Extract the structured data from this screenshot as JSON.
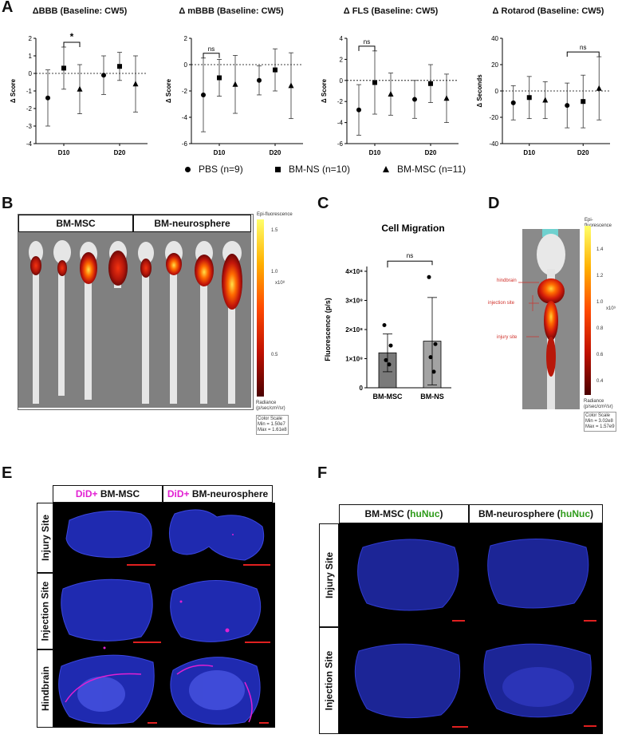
{
  "panels": {
    "A": "A",
    "B": "B",
    "C": "C",
    "D": "D",
    "E": "E",
    "F": "F"
  },
  "panelA": {
    "charts": [
      {
        "title": "ΔBBB (Baseline: CW5)",
        "ylabel": "Δ Score",
        "ylim": [
          -4,
          2
        ],
        "yticks": [
          "-4",
          "-3",
          "-2",
          "-1",
          "0",
          "1",
          "2"
        ],
        "xticks": [
          "D10",
          "D20"
        ],
        "sig": [
          {
            "label": "*",
            "group": "D10",
            "from": "BM-NS",
            "to": "BM-MSC"
          }
        ],
        "series": [
          {
            "name": "PBS",
            "values": [
              -1.4,
              -0.1
            ],
            "err": [
              1.6,
              1.1
            ]
          },
          {
            "name": "BM-NS",
            "values": [
              0.3,
              0.4
            ],
            "err": [
              1.2,
              0.8
            ]
          },
          {
            "name": "BM-MSC",
            "values": [
              -0.9,
              -0.6
            ],
            "err": [
              1.4,
              1.6
            ]
          }
        ]
      },
      {
        "title": "Δ mBBB (Baseline: CW5)",
        "ylabel": "Δ Score",
        "ylim": [
          -6,
          2
        ],
        "yticks": [
          "-6",
          "-4",
          "-2",
          "0",
          "2"
        ],
        "xticks": [
          "D10",
          "D20"
        ],
        "sig": [
          {
            "label": "ns",
            "group": "D10",
            "from": "PBS",
            "to": "BM-NS"
          }
        ],
        "series": [
          {
            "name": "PBS",
            "values": [
              -2.3,
              -1.2
            ],
            "err": [
              2.8,
              1.1
            ]
          },
          {
            "name": "BM-NS",
            "values": [
              -1.0,
              -0.4
            ],
            "err": [
              1.4,
              1.6
            ]
          },
          {
            "name": "BM-MSC",
            "values": [
              -1.5,
              -1.6
            ],
            "err": [
              2.2,
              2.5
            ]
          }
        ]
      },
      {
        "title": "Δ FLS (Baseline: CW5)",
        "ylabel": "Δ Score",
        "ylim": [
          -6,
          4
        ],
        "yticks": [
          "-6",
          "-4",
          "-2",
          "0",
          "2",
          "4"
        ],
        "xticks": [
          "D10",
          "D20"
        ],
        "sig": [
          {
            "label": "ns",
            "group": "D10",
            "from": "PBS",
            "to": "BM-NS"
          }
        ],
        "series": [
          {
            "name": "PBS",
            "values": [
              -2.8,
              -1.8
            ],
            "err": [
              2.4,
              1.8
            ]
          },
          {
            "name": "BM-NS",
            "values": [
              -0.2,
              -0.3
            ],
            "err": [
              3.0,
              1.8
            ]
          },
          {
            "name": "BM-MSC",
            "values": [
              -1.3,
              -1.7
            ],
            "err": [
              2.0,
              2.3
            ]
          }
        ]
      },
      {
        "title": "Δ Rotarod (Baseline: CW5)",
        "ylabel": "Δ Seconds",
        "ylim": [
          -40,
          40
        ],
        "yticks": [
          "-40",
          "-20",
          "0",
          "20",
          "40"
        ],
        "xticks": [
          "D10",
          "D20"
        ],
        "sig": [
          {
            "label": "ns",
            "group": "D20",
            "from": "PBS",
            "to": "BM-MSC"
          }
        ],
        "series": [
          {
            "name": "PBS",
            "values": [
              -9,
              -11
            ],
            "err": [
              13,
              17
            ]
          },
          {
            "name": "BM-NS",
            "values": [
              -5,
              -8
            ],
            "err": [
              16,
              20
            ]
          },
          {
            "name": "BM-MSC",
            "values": [
              -7,
              2
            ],
            "err": [
              14,
              24
            ]
          }
        ]
      }
    ],
    "legend": [
      {
        "marker": "circle",
        "label": "PBS (n=9)"
      },
      {
        "marker": "square",
        "label": "BM-NS (n=10)"
      },
      {
        "marker": "triangle",
        "label": "BM-MSC (n=11)"
      }
    ]
  },
  "panelB": {
    "headers": [
      "BM-MSC",
      "BM-neurosphere"
    ],
    "colorbar_title": "Epi-fluorescence",
    "ticks": [
      "1.5",
      "1.0",
      "0.5"
    ],
    "unit": "x10⁸",
    "radiance": "Radiance\n(p/sec/cm²/sr)",
    "colorscale": "Color Scale\nMin = 1.50e7\nMax = 1.61e8"
  },
  "panelC": {
    "chart_data": {
      "type": "bar",
      "title": "Cell Migration",
      "ylabel": "Fluorescence (p/s)",
      "categories": [
        "BM-MSC",
        "BM-NS"
      ],
      "values": [
        1.2,
        1.6
      ],
      "err": [
        0.65,
        1.5
      ],
      "points": [
        [
          2.15,
          1.45,
          0.95,
          0.8
        ],
        [
          3.8,
          1.5,
          1.05,
          0.55
        ]
      ],
      "yticks": [
        "0",
        "1×10⁸",
        "2×10⁸",
        "3×10⁸",
        "4×10⁸"
      ],
      "ylim": [
        0,
        4
      ],
      "sig": "ns"
    }
  },
  "panelD": {
    "labels": [
      "hindbrain",
      "injection site",
      "injury site"
    ],
    "colorbar_title": "Epi-fluorescence",
    "ticks": [
      "1.4",
      "1.2",
      "1.0",
      "0.8",
      "0.6",
      "0.4"
    ],
    "unit": "x10⁹",
    "radiance": "Radiance\n(p/sec/cm²/sr)",
    "colorscale": "Color Scale\nMin = 3.02e8\nMax = 1.57e9"
  },
  "panelE": {
    "headers": [
      {
        "prefix": "DiD+",
        "rest": " BM-MSC"
      },
      {
        "prefix": "DiD+",
        "rest": " BM-neurosphere"
      }
    ],
    "rows": [
      "Injury Site",
      "Injection Site",
      "Hindbrain"
    ]
  },
  "panelF": {
    "headers": [
      {
        "pre": "BM-MSC (",
        "tag": "huNuc",
        "post": ")"
      },
      {
        "pre": "BM-neurosphere (",
        "tag": "huNuc",
        "post": ")"
      }
    ],
    "rows": [
      "Injury Site",
      "Injection Site"
    ]
  },
  "colors": {
    "accent_magenta": "#e21fd2",
    "accent_green": "#2e9b1a",
    "fluor_red": "#c81e0a",
    "dapi_blue": "#2a2fc4"
  }
}
